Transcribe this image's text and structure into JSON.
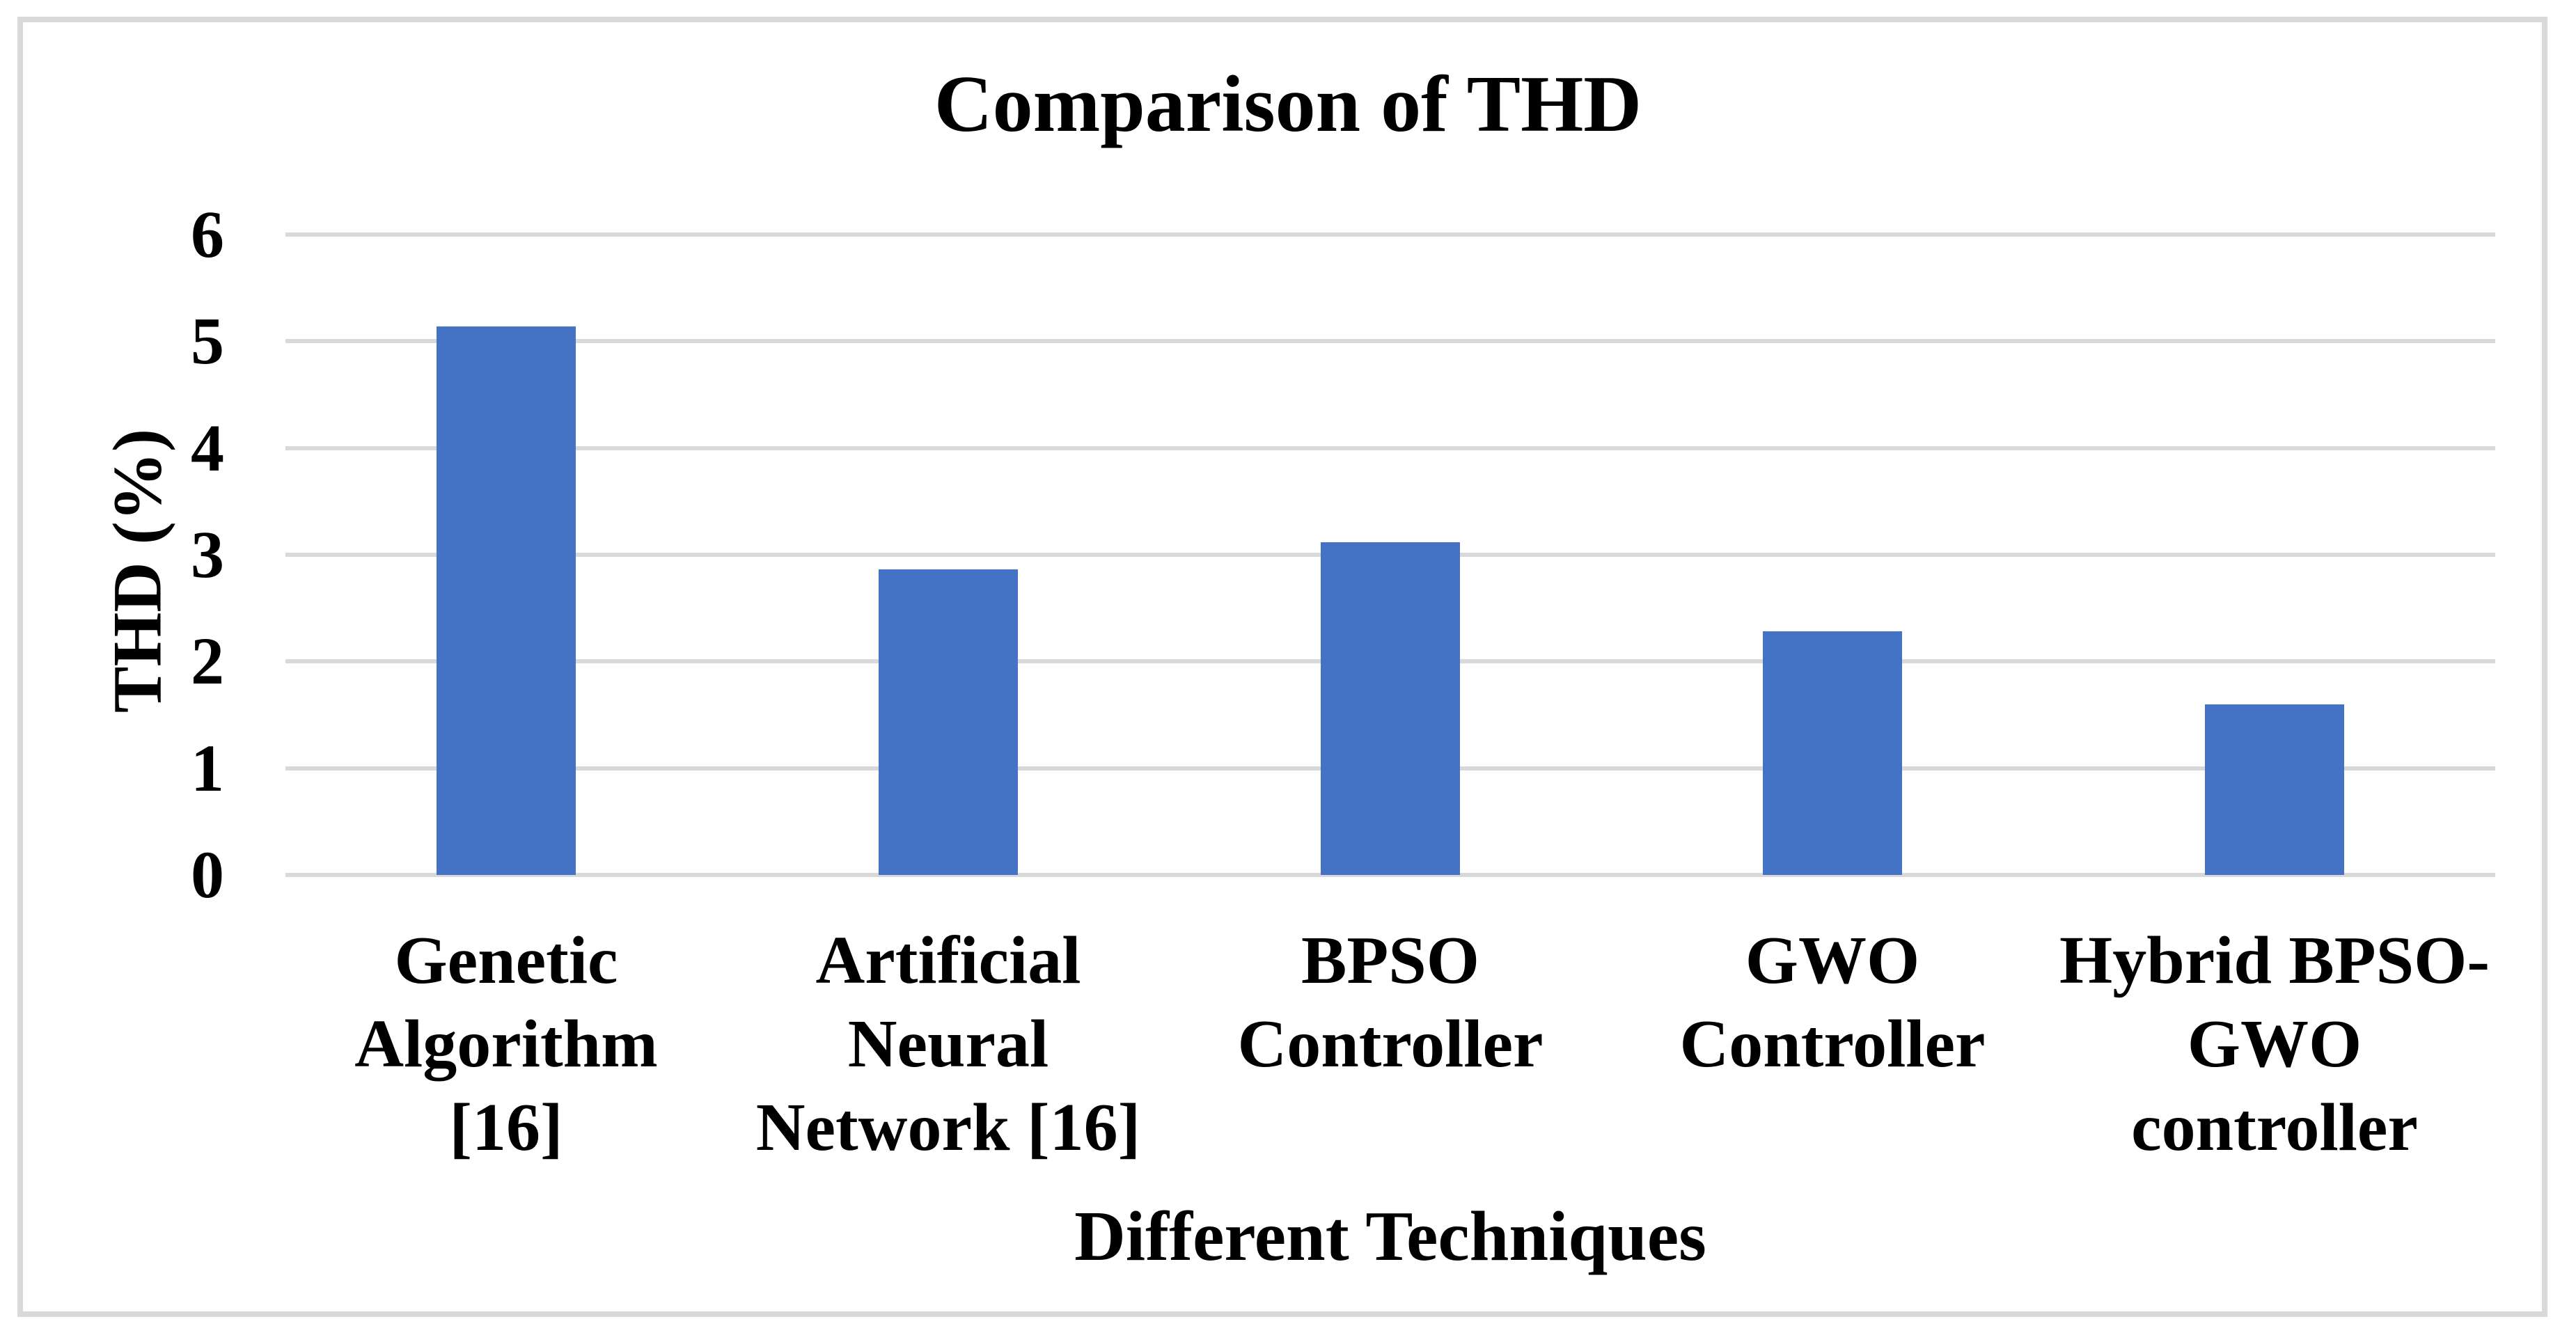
{
  "chart_data": {
    "type": "bar",
    "title": "Comparison of THD",
    "xlabel": "Different Techniques",
    "ylabel": "THD (%)",
    "categories": [
      "Genetic Algorithm [16]",
      "Artificial Neural Network [16]",
      "BPSO Controller",
      "GWO Controller",
      "Hybrid BPSO-GWO controller"
    ],
    "category_lines": [
      [
        "Genetic",
        "Algorithm",
        "[16]"
      ],
      [
        "Artificial",
        "Neural",
        "Network [16]"
      ],
      [
        "BPSO",
        "Controller"
      ],
      [
        "GWO",
        "Controller"
      ],
      [
        "Hybrid BPSO-",
        "GWO",
        "controller"
      ]
    ],
    "values": [
      5.14,
      2.86,
      3.12,
      2.28,
      1.6
    ],
    "yticks": [
      0,
      1,
      2,
      3,
      4,
      5,
      6
    ],
    "ylim": [
      0,
      6
    ],
    "grid": true,
    "legend_position": "none",
    "bar_color": "#4472C4",
    "gridline_color": "#D9D9D9",
    "frame_color": "#D9D9D9",
    "text_color": "#000000",
    "background_color": "#FFFFFF"
  }
}
